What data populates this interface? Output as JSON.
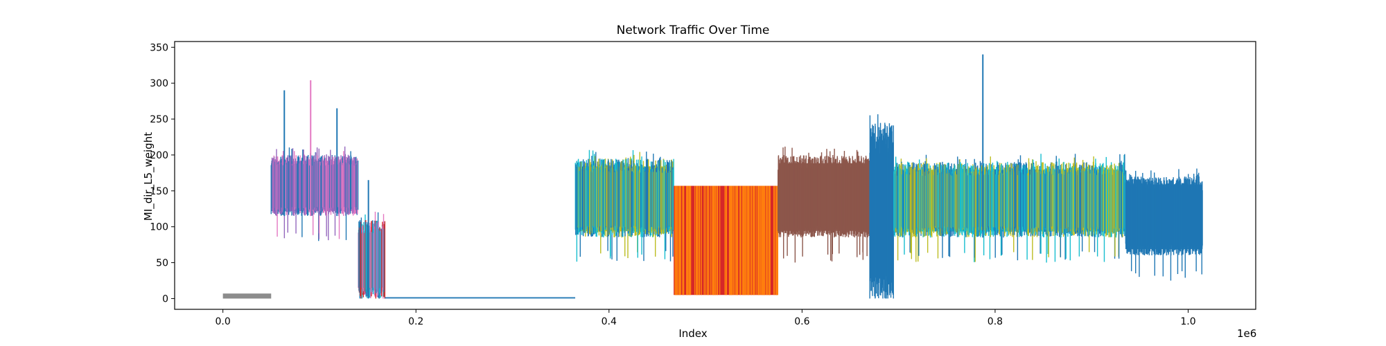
{
  "chart_data": {
    "type": "line",
    "title": "Network Traffic Over Time",
    "xlabel": "Index",
    "ylabel": "MI_dir_L5_weight",
    "x_offset_label": "1e6",
    "xlim": [
      -0.05,
      1.07
    ],
    "ylim": [
      -15,
      358
    ],
    "x_ticks": [
      "0.0",
      "0.2",
      "0.4",
      "0.6",
      "0.8",
      "1.0"
    ],
    "x_tick_values": [
      0.0,
      0.2,
      0.4,
      0.6,
      0.8,
      1.0
    ],
    "y_ticks": [
      "0",
      "50",
      "100",
      "150",
      "200",
      "250",
      "300",
      "350"
    ],
    "y_tick_values": [
      0,
      50,
      100,
      150,
      200,
      250,
      300,
      350
    ],
    "grid": false,
    "legend": null,
    "segments": [
      {
        "x_start": 0.0,
        "x_end": 0.05,
        "y_low": 0,
        "y_high": 7,
        "color": "#7f7f7f",
        "label": "gray low band"
      },
      {
        "x_start": 0.05,
        "x_end": 0.14,
        "y_low": 115,
        "y_high": 200,
        "color": "#9467bd",
        "label": "purple/blue/pink band",
        "peaks": [
          290,
          304,
          265
        ]
      },
      {
        "x_start": 0.14,
        "x_end": 0.168,
        "y_low": 0,
        "y_high": 110,
        "color": "#e377c2",
        "label": "pink/red/blue spikes",
        "peaks": [
          165
        ]
      },
      {
        "x_start": 0.168,
        "x_end": 0.365,
        "y_low": 0,
        "y_high": 2,
        "color": "#1f77b4",
        "label": "blue near-zero band"
      },
      {
        "x_start": 0.365,
        "x_end": 0.467,
        "y_low": 85,
        "y_high": 195,
        "color": "#bcbd22",
        "label": "olive/cyan/blue band"
      },
      {
        "x_start": 0.467,
        "x_end": 0.575,
        "y_low": 5,
        "y_high": 157,
        "color": "#d62728",
        "label": "red/orange block"
      },
      {
        "x_start": 0.575,
        "x_end": 0.67,
        "y_low": 85,
        "y_high": 200,
        "color": "#8c564b",
        "label": "brown band"
      },
      {
        "x_start": 0.67,
        "x_end": 0.695,
        "y_low": 0,
        "y_high": 245,
        "color": "#1f77b4",
        "label": "mixed spikes"
      },
      {
        "x_start": 0.695,
        "x_end": 0.935,
        "y_low": 85,
        "y_high": 190,
        "color": "#17becf",
        "label": "cyan/olive/blue band",
        "peaks": [
          340
        ]
      },
      {
        "x_start": 0.935,
        "x_end": 1.015,
        "y_low": 60,
        "y_high": 170,
        "color": "#1f77b4",
        "label": "blue band"
      }
    ]
  }
}
